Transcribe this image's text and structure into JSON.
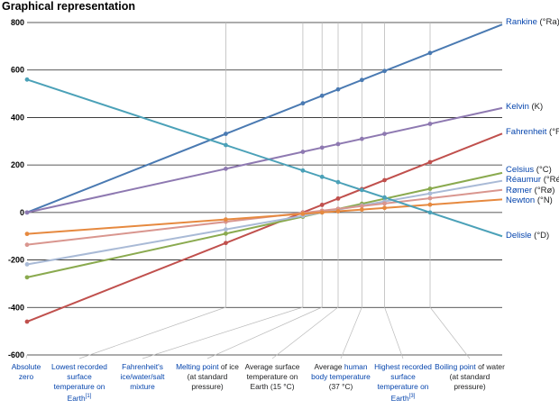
{
  "chart_data": {
    "type": "line",
    "title": "Graphical representation",
    "ylim": [
      -600,
      800
    ],
    "yticks": [
      800,
      600,
      400,
      200,
      0,
      -200,
      -400,
      -600
    ],
    "x": [
      {
        "kelvin": 0,
        "caption": [
          {
            "link": "Absolute zero"
          }
        ]
      },
      {
        "kelvin": 184,
        "caption": [
          {
            "link": "Lowest recorded surface temperature on Earth"
          },
          {
            "sup": "[1]"
          }
        ]
      },
      {
        "kelvin": 255.37,
        "caption": [
          {
            "link": "Fahrenheit's ice/water/salt mixture"
          }
        ]
      },
      {
        "kelvin": 273.15,
        "caption": [
          {
            "link": "Melting point"
          },
          {
            "text": " of ice (at standard pressure)"
          }
        ]
      },
      {
        "kelvin": 288,
        "caption": [
          {
            "text": "Average surface temperature on Earth (15 °C)"
          }
        ]
      },
      {
        "kelvin": 310,
        "caption": [
          {
            "text": "Average "
          },
          {
            "link": "human body temperature"
          },
          {
            "text": " (37 °C)"
          }
        ]
      },
      {
        "kelvin": 331,
        "caption": [
          {
            "link": "Highest recorded surface temperature on Earth"
          },
          {
            "sup": "[3]"
          }
        ]
      },
      {
        "kelvin": 373.15,
        "caption": [
          {
            "link": "Boiling point"
          },
          {
            "text": " of water (at standard pressure)"
          }
        ]
      }
    ],
    "series": [
      {
        "name": "Rankine",
        "unit": "(°Ra)",
        "color": "#4a7ab2",
        "at_0K": 0,
        "at_373K": 671.67
      },
      {
        "name": "Kelvin",
        "unit": "(K)",
        "color": "#8e79b1",
        "at_0K": 0,
        "at_373K": 373.15
      },
      {
        "name": "Fahrenheit",
        "unit": "(°F)",
        "color": "#c0504d",
        "at_0K": -459.67,
        "at_373K": 212
      },
      {
        "name": "Celsius",
        "unit": "(°C)",
        "color": "#8aaa4f",
        "at_0K": -273.15,
        "at_373K": 100
      },
      {
        "name": "Réaumur",
        "unit": "(°Ré)",
        "color": "#a9bad6",
        "at_0K": -218.52,
        "at_373K": 80
      },
      {
        "name": "Rømer",
        "unit": "(°Rø)",
        "color": "#d9968f",
        "at_0K": -135.9,
        "at_373K": 60
      },
      {
        "name": "Newton",
        "unit": "(°N)",
        "color": "#e6893f",
        "at_0K": -90.14,
        "at_373K": 33
      },
      {
        "name": "Delisle",
        "unit": "(°D)",
        "color": "#4ba1b8",
        "at_0K": 559.73,
        "at_373K": 0
      }
    ],
    "grid": true,
    "legend": "right, at line ends"
  }
}
